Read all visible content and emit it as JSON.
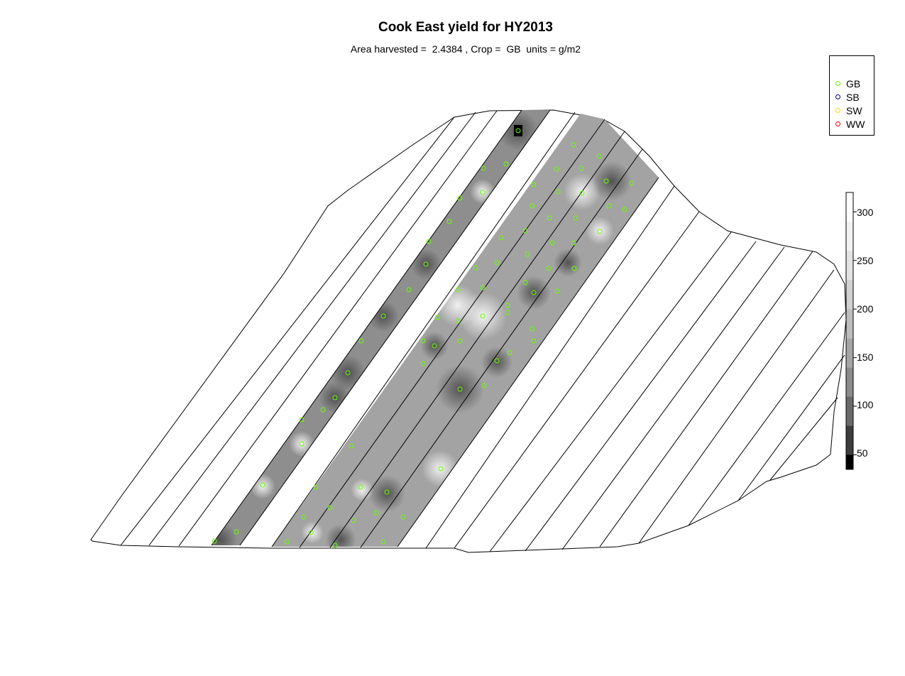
{
  "title": "Cook East yield for HY2013",
  "subtitle": "Area harvested =  2.4384 , Crop =  GB  units = g/m2",
  "legend": {
    "entries": [
      {
        "label": "GB",
        "color": "#66ff00"
      },
      {
        "label": "SB",
        "color": "#000080"
      },
      {
        "label": "SW",
        "color": "#ffd700"
      },
      {
        "label": "WW",
        "color": "#ff0000"
      }
    ]
  },
  "colorbar": {
    "ticks": [
      "300",
      "250",
      "200",
      "150",
      "100",
      "50"
    ],
    "range": [
      35,
      320
    ],
    "palette": [
      "#000000",
      "#3d3d3d",
      "#6a6a6a",
      "#8c8c8c",
      "#a6a6a6",
      "#bdbdbd",
      "#d1d1d1",
      "#e3e3e3",
      "#f2f2f2",
      "#ffffff"
    ]
  },
  "point_color": "#66ff00"
}
